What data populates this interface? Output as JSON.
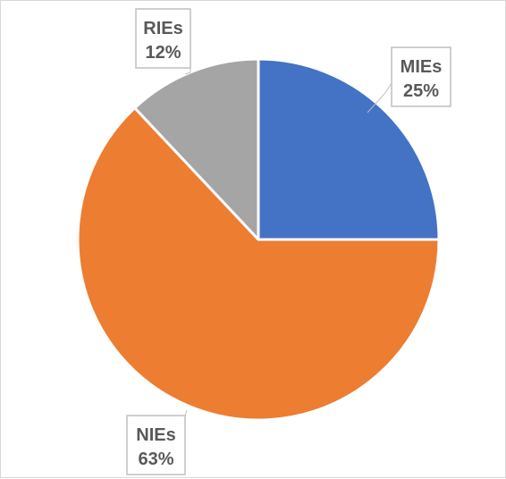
{
  "chart_data": {
    "type": "pie",
    "slices": [
      {
        "label": "MIEs",
        "value": 25,
        "color": "#4472c4",
        "display": "25%"
      },
      {
        "label": "NIEs",
        "value": 63,
        "color": "#ed7d31",
        "display": "63%"
      },
      {
        "label": "RIEs",
        "value": 12,
        "color": "#a5a5a5",
        "display": "12%"
      }
    ],
    "title": "",
    "legend": "none",
    "data_labels": "callouts"
  }
}
